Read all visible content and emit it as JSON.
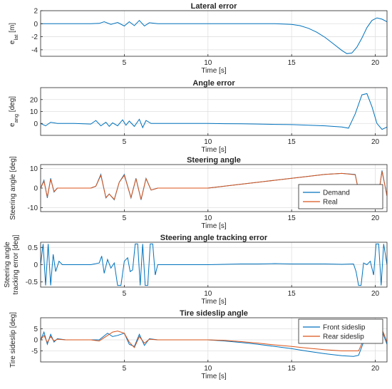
{
  "figure": {
    "background": "#ffffff"
  },
  "chart_data": [
    {
      "type": "line",
      "title": "Lateral error",
      "xlabel": "Time [s]",
      "ylabel_main": "e",
      "ylabel_sub": "lat",
      "ylabel_unit": " [m]",
      "xlim": [
        0,
        20.7
      ],
      "ylim": [
        -5,
        2
      ],
      "xticks": [
        5,
        10,
        15,
        20
      ],
      "yticks": [
        -4,
        -2,
        0,
        2
      ],
      "grid": true,
      "legend": null,
      "series": [
        {
          "color": "#0072BD",
          "x": [
            0,
            1,
            2,
            3,
            3.5,
            3.8,
            4.2,
            4.6,
            5,
            5.3,
            5.6,
            5.9,
            6.2,
            6.5,
            7,
            8,
            9,
            10,
            11,
            12,
            13,
            14,
            15,
            15.5,
            16,
            16.5,
            17,
            17.5,
            18,
            18.3,
            18.6,
            18.9,
            19.2,
            19.5,
            19.8,
            20.1,
            20.4,
            20.7
          ],
          "y": [
            0,
            0,
            0,
            0,
            0.05,
            0.3,
            -0.1,
            0.2,
            -0.35,
            0.3,
            -0.3,
            0.5,
            -0.35,
            0.15,
            0,
            0,
            0,
            0,
            0,
            0,
            0,
            0,
            -0.1,
            -0.3,
            -0.7,
            -1.3,
            -2.1,
            -3.1,
            -4.1,
            -4.6,
            -4.5,
            -3.6,
            -2.2,
            -0.6,
            0.5,
            0.9,
            0.7,
            0.3
          ]
        }
      ]
    },
    {
      "type": "line",
      "title": "Angle error",
      "xlabel": "Time [s]",
      "ylabel_main": "e",
      "ylabel_sub": "ang",
      "ylabel_unit": " [deg]",
      "xlim": [
        0,
        20.7
      ],
      "ylim": [
        -10,
        30
      ],
      "xticks": [
        5,
        10,
        15,
        20
      ],
      "yticks": [
        0,
        10,
        20
      ],
      "grid": true,
      "legend": null,
      "series": [
        {
          "color": "#0072BD",
          "x": [
            0,
            0.3,
            0.6,
            1,
            2,
            3,
            3.3,
            3.6,
            3.9,
            4.1,
            4.3,
            4.6,
            4.9,
            5.1,
            5.3,
            5.6,
            5.9,
            6.1,
            6.3,
            6.6,
            7,
            8,
            9,
            10,
            11,
            12,
            13,
            14,
            15,
            16,
            17,
            18,
            18.4,
            18.8,
            19.2,
            19.5,
            19.8,
            20.1,
            20.4,
            20.7
          ],
          "y": [
            0,
            -2,
            1,
            0,
            0,
            -0.5,
            2.5,
            -2,
            1,
            -2.5,
            0.5,
            -2,
            3,
            -1.5,
            2,
            -2.5,
            3.5,
            -3.5,
            2.5,
            0,
            0,
            0,
            0,
            0,
            -0.2,
            -0.3,
            -0.5,
            -0.8,
            -1,
            -1.5,
            -2,
            -3,
            -4,
            8,
            24,
            25,
            14,
            0,
            -5,
            -3
          ]
        }
      ]
    },
    {
      "type": "line",
      "title": "Steering angle",
      "xlabel": "Time [s]",
      "ylabel": "Steering angle [deg]",
      "xlim": [
        0,
        20.7
      ],
      "ylim": [
        -12,
        12
      ],
      "xticks": [
        5,
        10,
        15,
        20
      ],
      "yticks": [
        -10,
        0,
        10
      ],
      "grid": true,
      "legend": "lower right",
      "series": [
        {
          "name": "Demand",
          "color": "#0072BD",
          "x": [
            0,
            0.2,
            0.4,
            0.6,
            0.8,
            1,
            1.5,
            3,
            3.3,
            3.6,
            3.9,
            4.1,
            4.4,
            4.7,
            5,
            5.4,
            5.7,
            6,
            6.3,
            6.6,
            7,
            8,
            9,
            10,
            11,
            12,
            13,
            14,
            15,
            16,
            17,
            18,
            18.8,
            19.2,
            19.5,
            19.8,
            20.1,
            20.4,
            20.7
          ],
          "y": [
            0,
            4,
            -5,
            5,
            -2,
            0,
            0,
            0,
            1,
            7,
            -5,
            -3,
            -6,
            3,
            7,
            -5,
            5,
            -6,
            5,
            -1,
            0,
            0,
            0,
            0,
            1,
            2,
            3,
            4,
            5,
            6,
            7,
            7.5,
            7,
            -10,
            -9,
            -4,
            -9,
            9,
            -4
          ]
        },
        {
          "name": "Real",
          "color": "#D95319",
          "x": [
            0,
            0.2,
            0.4,
            0.6,
            0.8,
            1,
            1.5,
            3,
            3.3,
            3.6,
            3.9,
            4.1,
            4.4,
            4.7,
            5,
            5.4,
            5.7,
            6,
            6.3,
            6.6,
            7,
            8,
            9,
            10,
            11,
            12,
            13,
            14,
            15,
            16,
            17,
            18,
            18.8,
            19.2,
            19.5,
            19.8,
            20.1,
            20.4,
            20.7
          ],
          "y": [
            0,
            3.5,
            -4.5,
            4.5,
            -1.8,
            0,
            0,
            0,
            1,
            6.5,
            -4.8,
            -3,
            -5.8,
            3,
            6.5,
            -4.8,
            4.8,
            -5.8,
            4.8,
            -1,
            0,
            0,
            0,
            0,
            1,
            2,
            3,
            4,
            5,
            6,
            7,
            7.5,
            6.8,
            -9.5,
            -8.8,
            -4,
            -8.5,
            8.5,
            -4
          ]
        }
      ]
    },
    {
      "type": "line",
      "title": "Steering angle tracking error",
      "xlabel": "Time [s]",
      "ylabel_line1": "Steering angle",
      "ylabel_line2": "tracking error [deg]",
      "xlim": [
        0,
        20.7
      ],
      "ylim": [
        -0.65,
        0.65
      ],
      "xticks": [
        5,
        10,
        15,
        20
      ],
      "yticks": [
        -0.5,
        0,
        0.5
      ],
      "grid": true,
      "legend": null,
      "series": [
        {
          "color": "#0072BD",
          "x": [
            0,
            0.15,
            0.3,
            0.45,
            0.6,
            0.75,
            0.9,
            1.1,
            1.3,
            1.6,
            2,
            2.5,
            3,
            3.5,
            3.65,
            3.8,
            4,
            4.2,
            4.4,
            4.6,
            4.8,
            5,
            5.2,
            5.35,
            5.5,
            5.65,
            5.8,
            5.95,
            6.1,
            6.25,
            6.4,
            6.55,
            6.7,
            6.85,
            7,
            7.5,
            8,
            9,
            10,
            11,
            12,
            13,
            14,
            15,
            16,
            17,
            18,
            18.7,
            18.85,
            19,
            19.15,
            19.3,
            19.5,
            19.7,
            19.9,
            20.05,
            20.2,
            20.35,
            20.5,
            20.7
          ],
          "y": [
            0,
            0.6,
            -0.6,
            0.6,
            -0.6,
            0.3,
            -0.2,
            0.1,
            0,
            0,
            0,
            0,
            0,
            0.05,
            0.25,
            -0.25,
            0.15,
            -0.1,
            0.05,
            -0.6,
            -0.6,
            0.1,
            0.2,
            -0.2,
            -0.15,
            0.6,
            0.6,
            -0.6,
            0.6,
            -0.6,
            -0.6,
            0.6,
            0.6,
            -0.3,
            0,
            0,
            0,
            0,
            0,
            0.01,
            0.02,
            0.02,
            0.03,
            0.02,
            0.02,
            0.02,
            0.01,
            0.02,
            -0.2,
            -0.6,
            -0.6,
            0.05,
            0,
            0.1,
            -0.3,
            0.6,
            0.6,
            -0.6,
            0.6,
            0
          ]
        }
      ]
    },
    {
      "type": "line",
      "title": "Tire sideslip angle",
      "xlabel": "Time [s]",
      "ylabel": "Tire sideslip [deg]",
      "xlim": [
        0,
        20.7
      ],
      "ylim": [
        -10,
        10
      ],
      "xticks": [
        5,
        10,
        15,
        20
      ],
      "yticks": [
        -5,
        0,
        5
      ],
      "grid": true,
      "legend": "upper right",
      "series": [
        {
          "name": "Front sideslip",
          "color": "#0072BD",
          "x": [
            0,
            0.2,
            0.4,
            0.6,
            0.8,
            1,
            1.5,
            3,
            3.5,
            4,
            4.3,
            4.6,
            5,
            5.3,
            5.6,
            5.9,
            6.2,
            6.5,
            7,
            8,
            9,
            10,
            11,
            12,
            13,
            14,
            15,
            16,
            17,
            18,
            18.7,
            19,
            19.3,
            19.6,
            19.9,
            20.2,
            20.5,
            20.7
          ],
          "y": [
            0,
            3.5,
            -2,
            2.5,
            -1,
            0.5,
            0,
            0,
            0,
            3,
            1.5,
            2,
            3,
            -2,
            -3,
            2.5,
            -2.5,
            0.5,
            0,
            0,
            0,
            0,
            -0.5,
            -1.2,
            -2,
            -3,
            -4,
            -5.2,
            -6.3,
            -7.2,
            -7.5,
            -7,
            -1,
            6,
            7.5,
            8,
            2,
            -2
          ]
        },
        {
          "name": "Rear sideslip",
          "color": "#D95319",
          "x": [
            0,
            0.2,
            0.4,
            0.6,
            0.8,
            1,
            1.5,
            3,
            3.5,
            4,
            4.3,
            4.6,
            5,
            5.3,
            5.6,
            5.9,
            6.2,
            6.5,
            7,
            8,
            9,
            10,
            11,
            12,
            13,
            14,
            15,
            16,
            17,
            18,
            18.7,
            19,
            19.3,
            19.6,
            19.9,
            20.2,
            20.5,
            20.7
          ],
          "y": [
            0,
            2,
            -1.2,
            1.5,
            -0.5,
            0.3,
            0,
            0,
            -0.5,
            2,
            3.5,
            4,
            3,
            -1,
            -3.5,
            1.5,
            -1.5,
            0.3,
            0,
            0,
            0,
            0,
            -0.3,
            -0.8,
            -1.5,
            -2.3,
            -3,
            -3.8,
            -4.5,
            -5,
            -5,
            -5,
            0,
            4.5,
            6.5,
            7.5,
            3,
            -1
          ]
        }
      ]
    }
  ]
}
